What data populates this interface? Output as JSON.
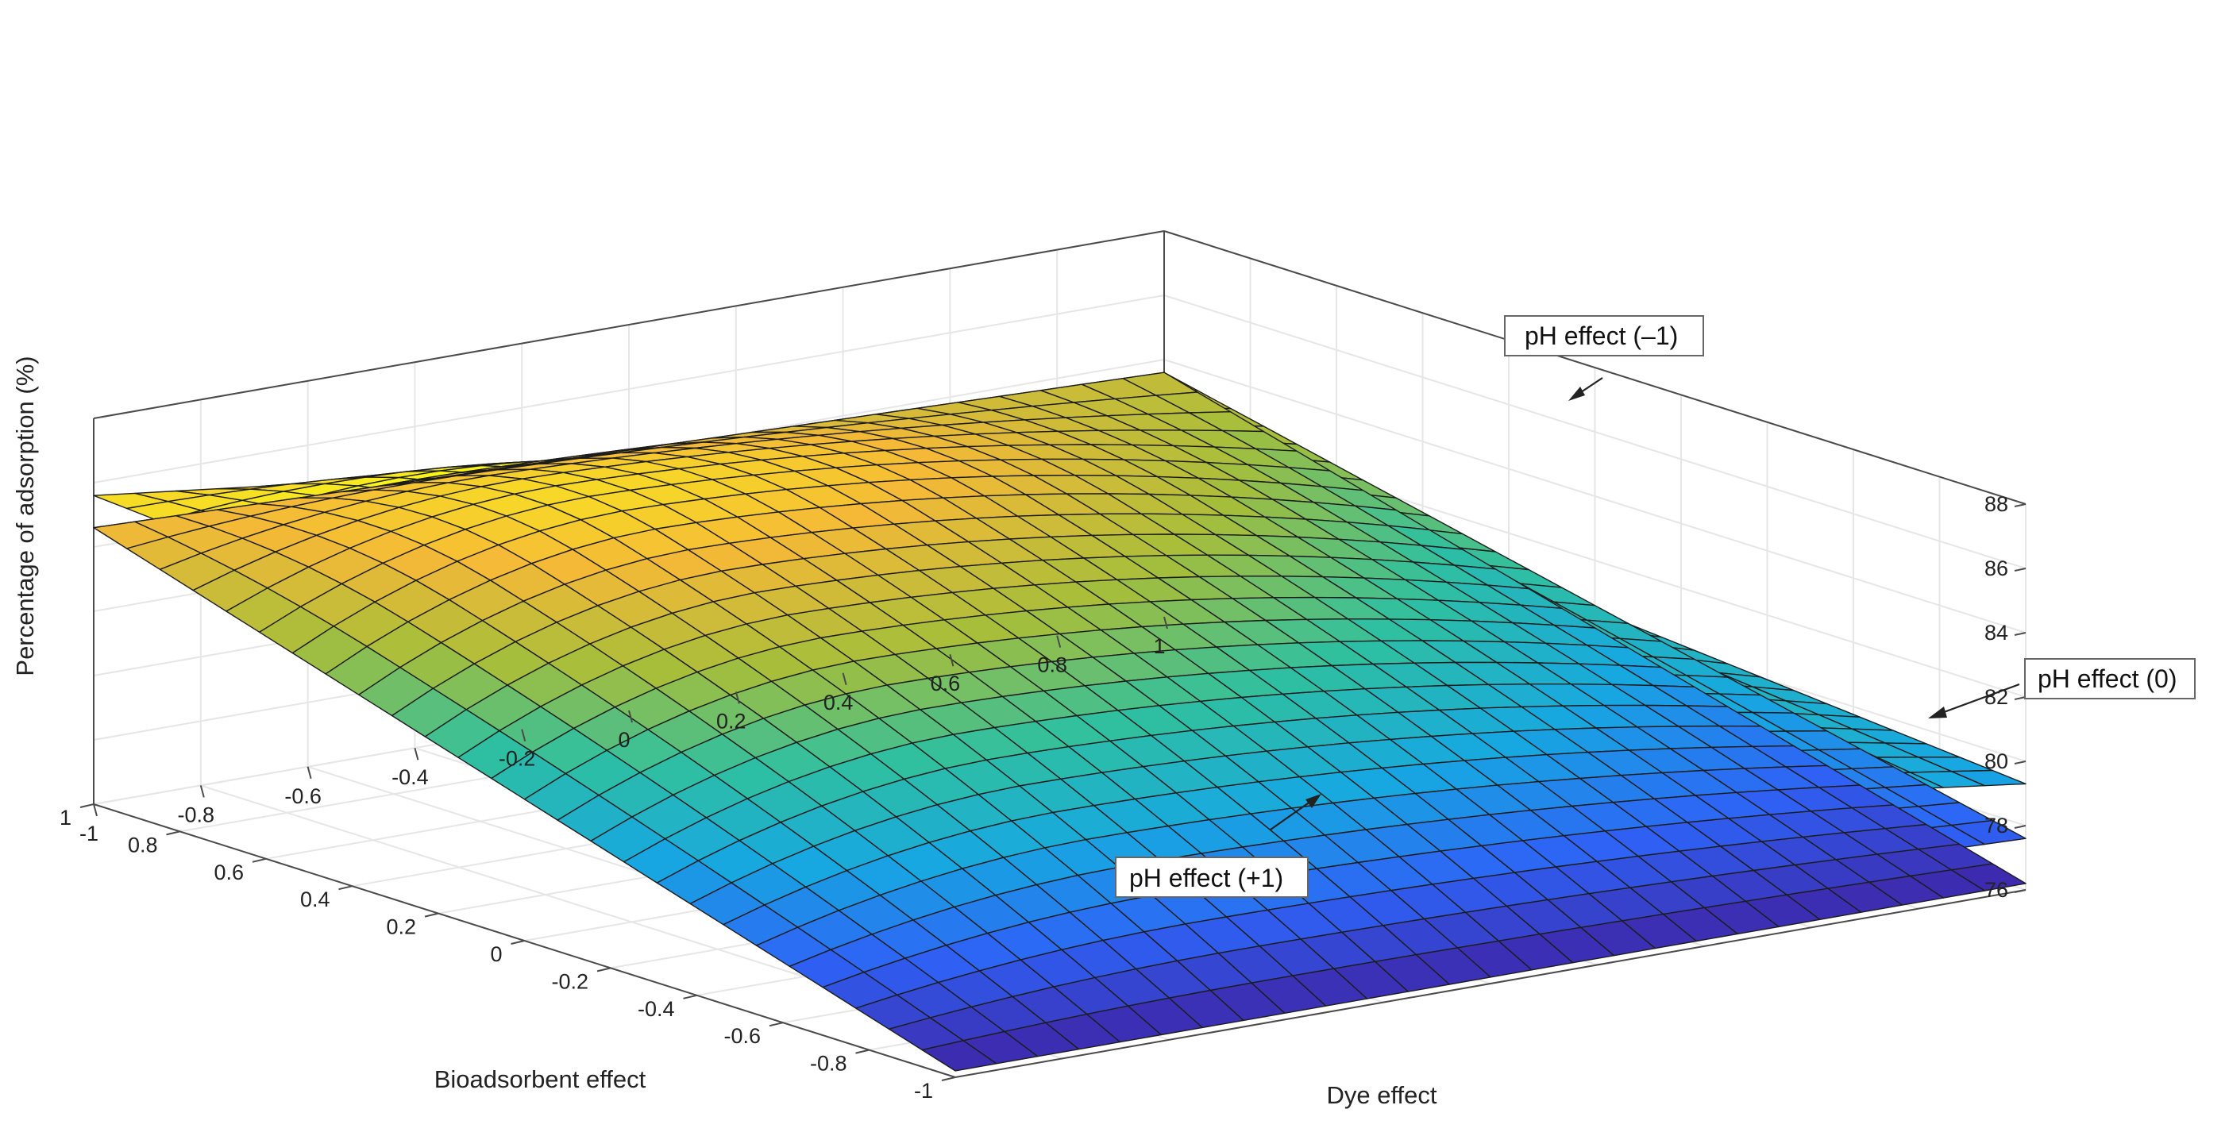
{
  "chart_data": {
    "type": "surface",
    "title": "",
    "xlabel": "Bioadsorbent effect",
    "ylabel": "Dye effect",
    "zlabel": "Percentage of adsorption (%)",
    "xlim": [
      -1,
      1
    ],
    "ylim": [
      -1,
      1
    ],
    "zlim": [
      76,
      88
    ],
    "x_ticks": [
      "-1",
      "-0.8",
      "-0.6",
      "-0.4",
      "-0.2",
      "0",
      "0.2",
      "0.4",
      "0.6",
      "0.8",
      "1"
    ],
    "y_ticks": [
      "-1",
      "-0.8",
      "-0.6",
      "-0.4",
      "-0.2",
      "0",
      "0.2",
      "0.4",
      "0.6",
      "0.8",
      "1"
    ],
    "z_ticks": [
      "76",
      "78",
      "80",
      "82",
      "84",
      "86",
      "88"
    ],
    "grid": true,
    "colormap": [
      "#3e26a8",
      "#2e62f6",
      "#17a8e1",
      "#2fc0a0",
      "#a6be3a",
      "#f5b937",
      "#f9fb15"
    ],
    "series": [
      {
        "name": "pH effect (–1)",
        "corners": {
          "x_-1_y_-1": 83.6,
          "x_1_y_-1": 85.6,
          "x_-1_y_1": 79.3,
          "x_1_y_1": 81.6
        },
        "peak": 86.3
      },
      {
        "name": "pH effect (0)",
        "corners": {
          "x_-1_y_-1": 78.7,
          "x_1_y_-1": 84.6,
          "x_-1_y_1": 77.6,
          "x_1_y_1": 83.6
        },
        "peak": 85.6
      },
      {
        "name": "pH effect (+1)",
        "corners": {
          "x_-1_y_-1": 76.2,
          "x_1_y_-1": 84.6,
          "x_-1_y_1": 76.2,
          "x_1_y_1": 83.6
        },
        "peak": 85.0
      }
    ]
  }
}
